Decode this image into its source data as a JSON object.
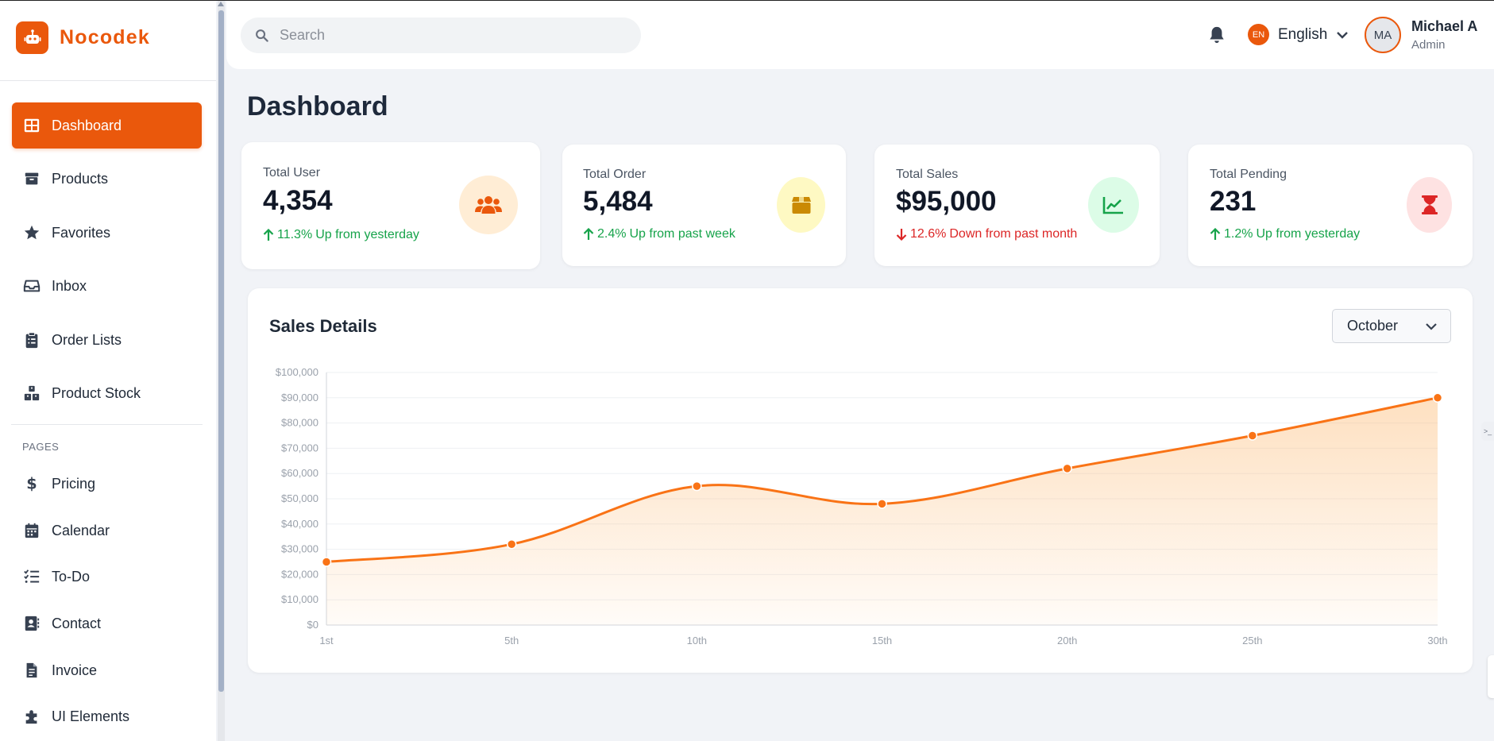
{
  "brand": {
    "name": "Nocodek",
    "color": "#ea580c",
    "icon": "robot-icon"
  },
  "sidebar": {
    "items": [
      {
        "label": "Dashboard",
        "icon": "dashboard-grid-icon",
        "active": true
      },
      {
        "label": "Products",
        "icon": "box-icon"
      },
      {
        "label": "Favorites",
        "icon": "star-icon"
      },
      {
        "label": "Inbox",
        "icon": "inbox-icon"
      },
      {
        "label": "Order Lists",
        "icon": "clipboard-list-icon"
      },
      {
        "label": "Product Stock",
        "icon": "boxes-icon"
      }
    ],
    "section_label": "PAGES",
    "pages": [
      {
        "label": "Pricing",
        "icon": "dollar-icon"
      },
      {
        "label": "Calendar",
        "icon": "calendar-icon"
      },
      {
        "label": "To-Do",
        "icon": "checklist-icon"
      },
      {
        "label": "Contact",
        "icon": "contact-card-icon"
      },
      {
        "label": "Invoice",
        "icon": "invoice-icon"
      },
      {
        "label": "UI Elements",
        "icon": "puzzle-icon"
      }
    ]
  },
  "header": {
    "search_placeholder": "Search",
    "language": {
      "badge": "EN",
      "label": "English"
    },
    "user": {
      "initials": "MA",
      "name": "Michael A",
      "role": "Admin"
    }
  },
  "page_title": "Dashboard",
  "stats": [
    {
      "label": "Total User",
      "value": "4,354",
      "trend_dir": "up",
      "trend_pct": "11.3%",
      "trend_text": "Up from yesterday",
      "icon": "users-icon",
      "icon_bg": "#ffedd5",
      "icon_color": "#ea580c"
    },
    {
      "label": "Total Order",
      "value": "5,484",
      "trend_dir": "up",
      "trend_pct": "2.4%",
      "trend_text": "Up from past week",
      "icon": "package-icon",
      "icon_bg": "#fef9c3",
      "icon_color": "#ca8a04"
    },
    {
      "label": "Total Sales",
      "value": "$95,000",
      "trend_dir": "down",
      "trend_pct": "12.6%",
      "trend_text": "Down from past month",
      "icon": "chart-line-icon",
      "icon_bg": "#dcfce7",
      "icon_color": "#16a34a"
    },
    {
      "label": "Total Pending",
      "value": "231",
      "trend_dir": "up",
      "trend_pct": "1.2%",
      "trend_text": "Up from yesterday",
      "icon": "hourglass-icon",
      "icon_bg": "#fee2e2",
      "icon_color": "#dc2626"
    }
  ],
  "sales": {
    "title": "Sales Details",
    "month": "October"
  },
  "side_tab_label": ">_",
  "chart_data": {
    "type": "area",
    "title": "Sales Details",
    "x": [
      "1st",
      "5th",
      "10th",
      "15th",
      "20th",
      "25th",
      "30th"
    ],
    "series": [
      {
        "values": [
          25000,
          32000,
          55000,
          48000,
          62000,
          75000,
          90000
        ],
        "color": "#f97316"
      }
    ],
    "yticks": [
      "$0",
      "$10,000",
      "$20,000",
      "$30,000",
      "$40,000",
      "$50,000",
      "$60,000",
      "$70,000",
      "$80,000",
      "$90,000",
      "$100,000"
    ],
    "ylim": [
      0,
      100000
    ],
    "grid": true,
    "legend": "none"
  }
}
